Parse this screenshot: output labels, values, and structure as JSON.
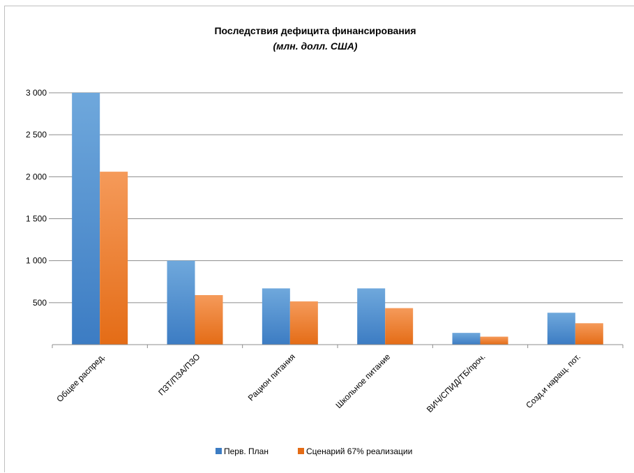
{
  "chart_data": {
    "type": "bar",
    "title": "Последствия дефицита финансирования",
    "subtitle": "(млн. долл. США)",
    "categories": [
      "Общее распред.",
      "ПЗТ/ПЗА/ПЗО",
      "Рацион питания",
      "Школьное питание",
      "ВИЧ/СПИД/ТБ/проч.",
      "Созд.и наращ. пот."
    ],
    "series": [
      {
        "name": "Перв. План",
        "values": [
          3000,
          1000,
          670,
          670,
          140,
          380
        ],
        "color_top": "#6fa8dc",
        "color_bottom": "#3c7cc3"
      },
      {
        "name": "Сценарий 67% реализации",
        "values": [
          2060,
          590,
          515,
          435,
          95,
          255
        ],
        "color_top": "#f59a5a",
        "color_bottom": "#e46c16"
      }
    ],
    "ylim": [
      0,
      3000
    ],
    "yticks": [
      500,
      1000,
      1500,
      2000,
      2500,
      3000
    ],
    "ytick_labels": [
      "500",
      "1 000",
      "1 500",
      "2 000",
      "2 500",
      "3 000"
    ],
    "grid": true,
    "legend_position": "bottom"
  }
}
